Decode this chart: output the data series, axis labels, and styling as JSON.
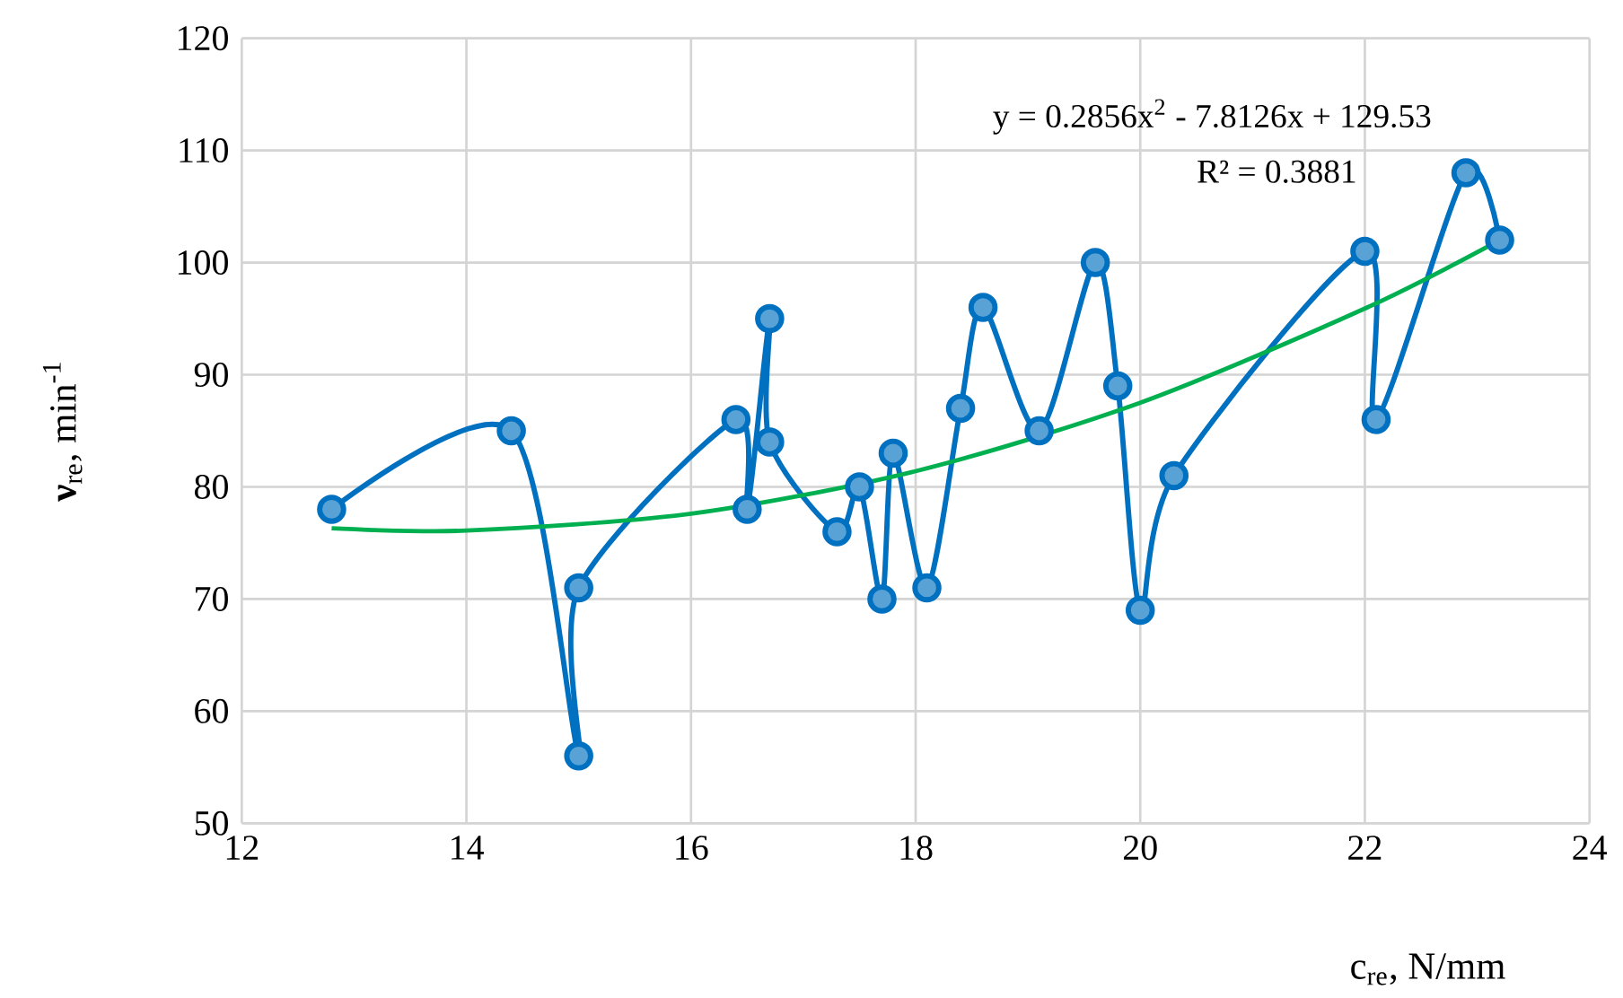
{
  "chart_data": {
    "type": "line",
    "xlabel": "c$_{re}$, N/mm",
    "ylabel": "**ν**$_{re}$, min$^{-1}$",
    "xlim": [
      12,
      24
    ],
    "xticks": [
      12,
      14,
      16,
      18,
      20,
      22,
      24
    ],
    "ylim": [
      50,
      120
    ],
    "yticks": [
      50,
      60,
      70,
      80,
      90,
      100,
      110,
      120
    ],
    "grid": true,
    "marker": "circle",
    "line_style": "solid",
    "annotations": [
      "y = 0.2856x$^{2}$ - 7.8126x + 129.53",
      "R² = 0.3881"
    ],
    "series": [
      {
        "color": "#0070c0",
        "x": [
          12.8,
          14.4,
          15.0,
          15.0,
          16.4,
          16.5,
          16.7,
          16.7,
          17.3,
          17.5,
          17.7,
          17.8,
          18.1,
          18.4,
          18.6,
          19.1,
          19.6,
          19.8,
          20.0,
          20.3,
          22.0,
          22.1,
          22.9,
          23.2
        ],
        "values": [
          78,
          85,
          56,
          71,
          86,
          78,
          95,
          84,
          76,
          80,
          70,
          83,
          71,
          87,
          96,
          85,
          100,
          89,
          69,
          81,
          101,
          86,
          108,
          102
        ]
      },
      {
        "type": "line",
        "marker": "none",
        "color": "#00b050",
        "x": [
          12.8,
          14,
          16,
          18,
          20,
          22,
          23.2
        ],
        "values": [
          76.3,
          76.1,
          77.6,
          81.4,
          87.5,
          95.9,
          102.0
        ]
      }
    ]
  }
}
